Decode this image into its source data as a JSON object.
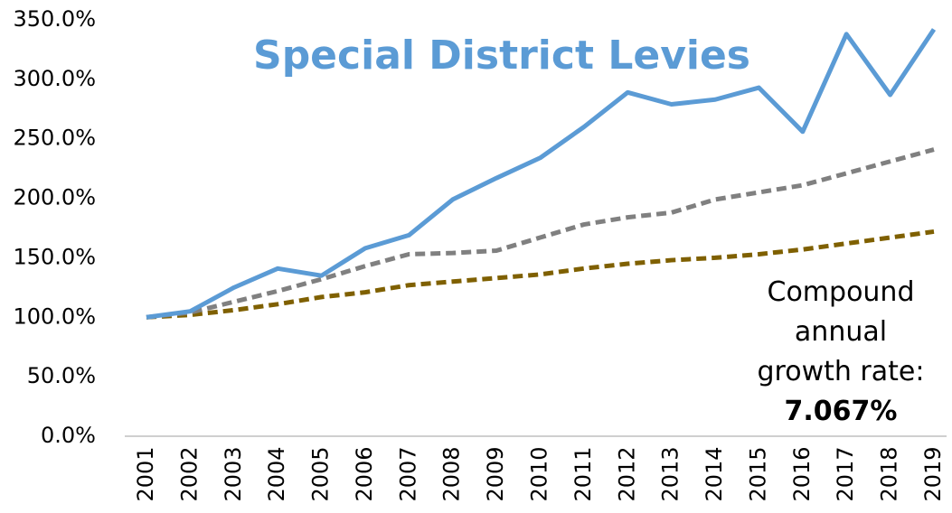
{
  "chart_data": {
    "type": "line",
    "title": "Special District Levies",
    "categories": [
      "2001",
      "2002",
      "2003",
      "2004",
      "2005",
      "2006",
      "2007",
      "2008",
      "2009",
      "2010",
      "2011",
      "2012",
      "2013",
      "2014",
      "2015",
      "2016",
      "2017",
      "2018",
      "2019"
    ],
    "series": [
      {
        "color": "#5b9bd5",
        "dashed": false,
        "values": [
          100,
          105,
          125,
          141,
          135,
          158,
          169,
          199,
          217,
          234,
          260,
          289,
          279,
          283,
          293,
          256,
          338,
          287,
          342
        ]
      },
      {
        "color": "#808080",
        "dashed": true,
        "values": [
          100,
          104,
          113,
          122,
          132,
          143,
          153,
          154,
          156,
          167,
          178,
          184,
          188,
          199,
          205,
          211,
          221,
          231,
          241
        ]
      },
      {
        "color": "#7f6000",
        "dashed": true,
        "values": [
          100,
          102,
          106,
          111,
          117,
          121,
          127,
          130,
          133,
          136,
          141,
          145,
          148,
          150,
          153,
          157,
          162,
          167,
          172
        ]
      }
    ],
    "ylim": [
      0,
      350
    ],
    "yticks": [
      {
        "value": 0,
        "label": "0.0%"
      },
      {
        "value": 50,
        "label": "50.0%"
      },
      {
        "value": 100,
        "label": "100.0%"
      },
      {
        "value": 150,
        "label": "150.0%"
      },
      {
        "value": 200,
        "label": "200.0%"
      },
      {
        "value": 250,
        "label": "250.0%"
      },
      {
        "value": 300,
        "label": "300.0%"
      },
      {
        "value": 350,
        "label": "350.0%"
      }
    ],
    "grid": false,
    "annotation": {
      "text": "Compound annual growth rate:",
      "value": "7.067%"
    }
  }
}
